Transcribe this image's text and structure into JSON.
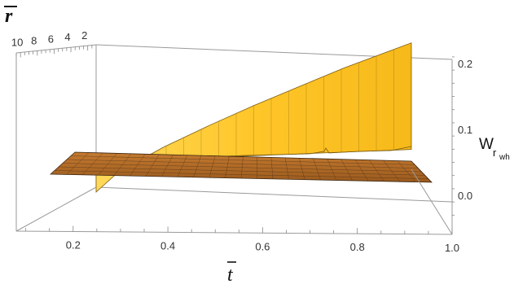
{
  "chart_data": {
    "type": "surface3d",
    "title": "",
    "axes": {
      "t": {
        "label": "t",
        "label_bar": true,
        "range": [
          0.08,
          1.0
        ],
        "ticks": [
          0.2,
          0.4,
          0.6,
          0.8,
          1.0
        ],
        "tick_labels": [
          "0.2",
          "0.4",
          "0.6",
          "0.8",
          "1.0"
        ]
      },
      "r": {
        "label": "r",
        "label_bar": true,
        "range": [
          1,
          10.5
        ],
        "ticks": [
          2,
          4,
          6,
          8,
          10
        ],
        "tick_labels": [
          "2",
          "4",
          "6",
          "8",
          "10"
        ]
      },
      "w": {
        "label_main": "W",
        "label_sub_r": "r",
        "label_sub_wh": "wh",
        "range": [
          -0.03,
          0.22
        ],
        "ticks": [
          0.0,
          0.1,
          0.2
        ],
        "tick_labels": [
          "0.0",
          "0.1",
          "0.2"
        ]
      }
    },
    "surfaces": [
      {
        "description_color": "#ffc629",
        "edge_at_min_r": [
          [
            0.25,
            0.0
          ],
          [
            0.3,
            0.03
          ],
          [
            0.4,
            0.066
          ],
          [
            0.5,
            0.097
          ],
          [
            0.6,
            0.126
          ],
          [
            0.7,
            0.153
          ],
          [
            0.8,
            0.18
          ],
          [
            0.9,
            0.204
          ],
          [
            0.95,
            0.216
          ]
        ]
      },
      {
        "description_color": "#b36b26",
        "near_zero_level": 0.005
      }
    ],
    "grid": false
  }
}
